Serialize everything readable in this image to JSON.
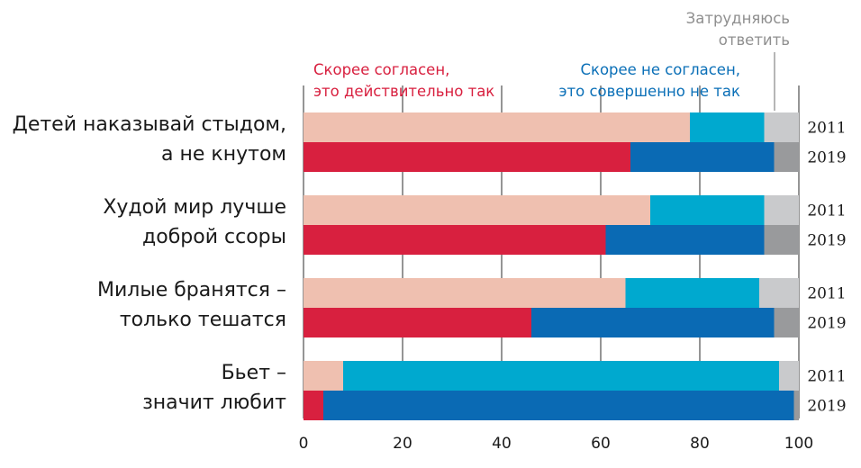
{
  "chart_data": {
    "type": "bar",
    "orientation": "horizontal",
    "stacked": true,
    "xlim": [
      0,
      100
    ],
    "xticks": [
      0,
      20,
      40,
      60,
      80,
      100
    ],
    "grid": true,
    "legend": {
      "agree": [
        "Скорее согласен,",
        "это действительно так"
      ],
      "disagree": [
        "Скорее не согласен,",
        "это совершенно не так"
      ],
      "dont_know": [
        "Затрудняюсь",
        "ответить"
      ]
    },
    "colors": {
      "agree_2011": "#efc0b0",
      "agree_2019": "#d8203f",
      "disagree_2011": "#00a9cf",
      "disagree_2019": "#0a6ab4",
      "dk_2011": "#c9cacc",
      "dk_2019": "#999a9c"
    },
    "categories": [
      {
        "label": [
          "Детей наказывай стыдом,",
          "а не кнутом"
        ],
        "rows": [
          {
            "year": "2011",
            "agree": 78,
            "disagree": 15,
            "dont_know": 7
          },
          {
            "year": "2019",
            "agree": 66,
            "disagree": 29,
            "dont_know": 5
          }
        ]
      },
      {
        "label": [
          "Худой мир лучше",
          "доброй ссоры"
        ],
        "rows": [
          {
            "year": "2011",
            "agree": 70,
            "disagree": 23,
            "dont_know": 7
          },
          {
            "year": "2019",
            "agree": 61,
            "disagree": 32,
            "dont_know": 7
          }
        ]
      },
      {
        "label": [
          "Милые бранятся –",
          "только тешатся"
        ],
        "rows": [
          {
            "year": "2011",
            "agree": 65,
            "disagree": 27,
            "dont_know": 8
          },
          {
            "year": "2019",
            "agree": 46,
            "disagree": 49,
            "dont_know": 5
          }
        ]
      },
      {
        "label": [
          "Бьет –",
          "значит любит"
        ],
        "rows": [
          {
            "year": "2011",
            "agree": 8,
            "disagree": 88,
            "dont_know": 4
          },
          {
            "year": "2019",
            "agree": 4,
            "disagree": 95,
            "dont_know": 1
          }
        ]
      }
    ]
  }
}
